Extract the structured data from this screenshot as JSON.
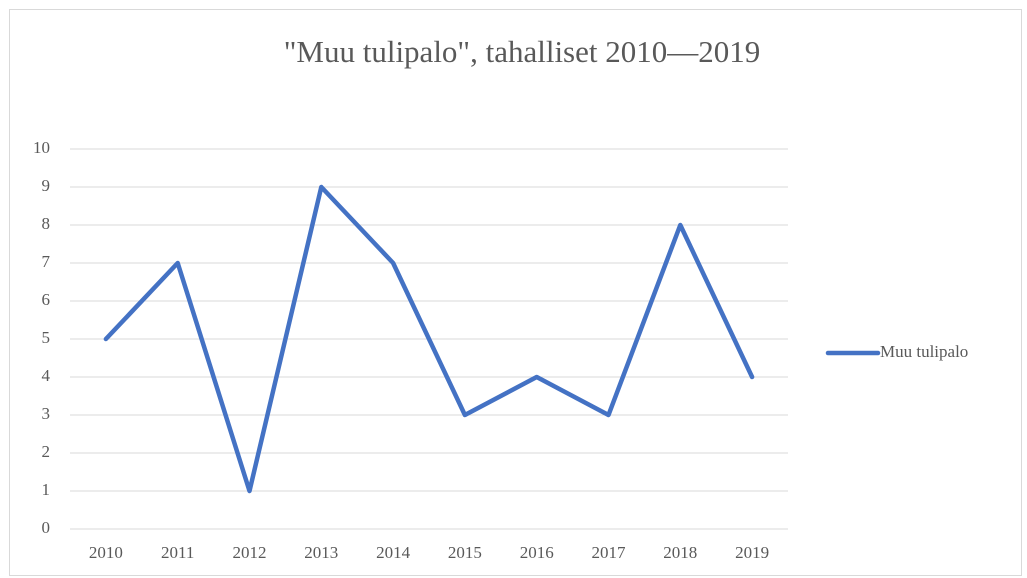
{
  "chart_data": {
    "type": "line",
    "title": "\"Muu tulipalo\", tahalliset 2010—2019",
    "categories": [
      "2010",
      "2011",
      "2012",
      "2013",
      "2014",
      "2015",
      "2016",
      "2017",
      "2018",
      "2019"
    ],
    "series": [
      {
        "name": "Muu tulipalo",
        "color": "#4472c4",
        "values": [
          5,
          7,
          1,
          9,
          7,
          3,
          4,
          3,
          8,
          4
        ]
      }
    ],
    "ylim": [
      0,
      10
    ],
    "yticks": [
      0,
      1,
      2,
      3,
      4,
      5,
      6,
      7,
      8,
      9,
      10
    ],
    "grid": true,
    "legend": "right"
  }
}
